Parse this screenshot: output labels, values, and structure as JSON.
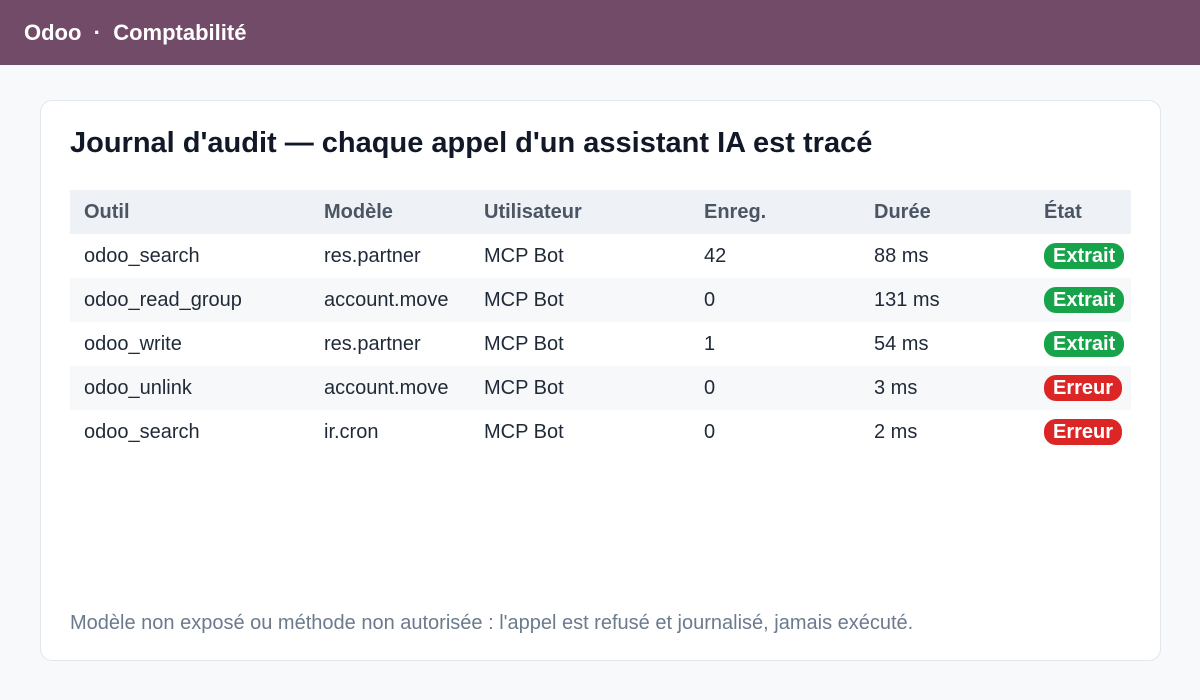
{
  "app": {
    "title": "Odoo  ·  Comptabilité"
  },
  "card": {
    "title": "Journal d'audit — chaque appel d'un assistant IA est tracé",
    "footer": "Modèle non exposé ou méthode non autorisée : l'appel est refusé et journalisé, jamais exécuté."
  },
  "table": {
    "headers": [
      "Outil",
      "Modèle",
      "Utilisateur",
      "Enreg.",
      "Durée",
      "État"
    ],
    "rows": [
      {
        "tool": "odoo_search",
        "model": "res.partner",
        "user": "MCP Bot",
        "records": "42",
        "duration": "88 ms",
        "status": "Extrait",
        "status_color": "#16a34a"
      },
      {
        "tool": "odoo_read_group",
        "model": "account.move",
        "user": "MCP Bot",
        "records": "0",
        "duration": "131 ms",
        "status": "Extrait",
        "status_color": "#16a34a"
      },
      {
        "tool": "odoo_write",
        "model": "res.partner",
        "user": "MCP Bot",
        "records": "1",
        "duration": "54 ms",
        "status": "Extrait",
        "status_color": "#16a34a"
      },
      {
        "tool": "odoo_unlink",
        "model": "account.move",
        "user": "MCP Bot",
        "records": "0",
        "duration": "3 ms",
        "status": "Erreur",
        "status_color": "#dc2626"
      },
      {
        "tool": "odoo_search",
        "model": "ir.cron",
        "user": "MCP Bot",
        "records": "0",
        "duration": "2 ms",
        "status": "Erreur",
        "status_color": "#dc2626"
      }
    ]
  },
  "colors": {
    "brand": "#714b67",
    "success": "#16a34a",
    "error": "#dc2626"
  }
}
